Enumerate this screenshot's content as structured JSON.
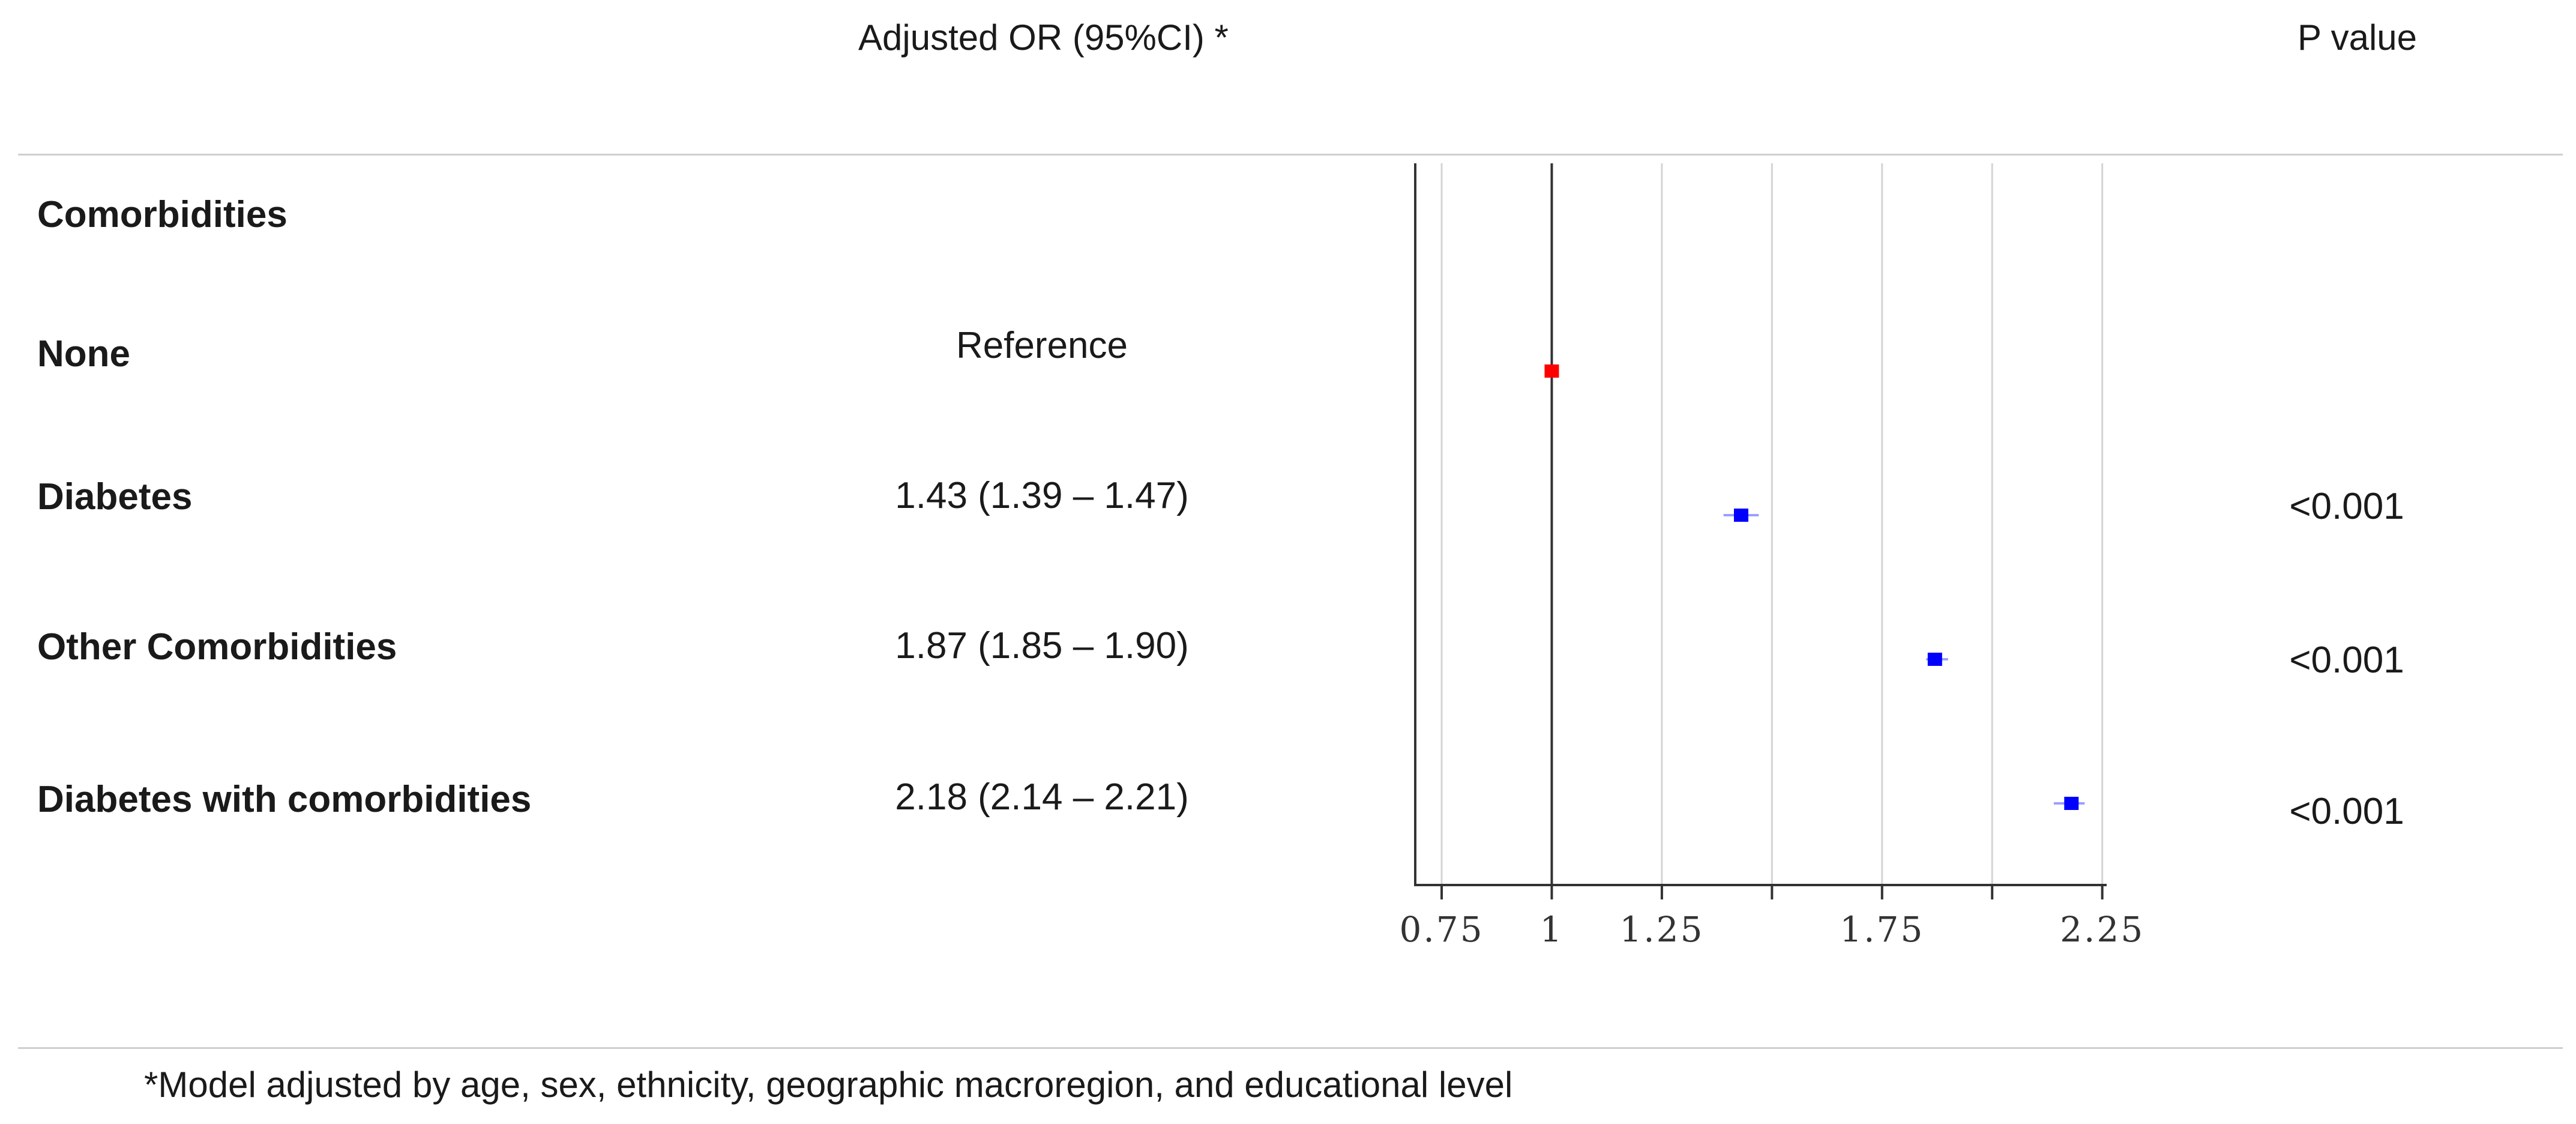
{
  "header": {
    "or_label": "Adjusted OR (95%CI) *",
    "p_label": "P value"
  },
  "section_label": "Comorbidities",
  "rows": [
    {
      "label": "None",
      "or_text": "Reference",
      "p": ""
    },
    {
      "label": "Diabetes",
      "or_text": "1.43 (1.39 – 1.47)",
      "p": "<0.001"
    },
    {
      "label": "Other Comorbidities",
      "or_text": "1.87 (1.85 – 1.90)",
      "p": "<0.001"
    },
    {
      "label": "Diabetes with comorbidities",
      "or_text": "2.18 (2.14 – 2.21)",
      "p": "<0.001"
    }
  ],
  "footnote": "*Model adjusted by age, sex, ethnicity, geographic macroregion, and educational level",
  "chart_data": {
    "type": "scatter",
    "subtype": "forest-plot",
    "categories": [
      "None",
      "Diabetes",
      "Other Comorbidities",
      "Diabetes with comorbidities"
    ],
    "series": [
      {
        "values": [
          1.0,
          1.43,
          1.87,
          2.18
        ],
        "lower": [
          1.0,
          1.39,
          1.85,
          2.14
        ],
        "upper": [
          1.0,
          1.47,
          1.9,
          2.21
        ],
        "colors": [
          "#ff0000",
          "#0000ff",
          "#0000ff",
          "#0000ff"
        ]
      }
    ],
    "xlim": [
      0.69,
      2.26
    ],
    "xticks": [
      0.75,
      1,
      1.25,
      1.75,
      2.25
    ],
    "xtick_labels": [
      "0.75",
      "1",
      "1.25",
      "1.75",
      "2.25"
    ],
    "gridlines": [
      0.75,
      1.25,
      1.5,
      1.75,
      2.0,
      2.25
    ],
    "reference_line": 1,
    "xlabel": "",
    "ylabel": "",
    "grid": true
  }
}
